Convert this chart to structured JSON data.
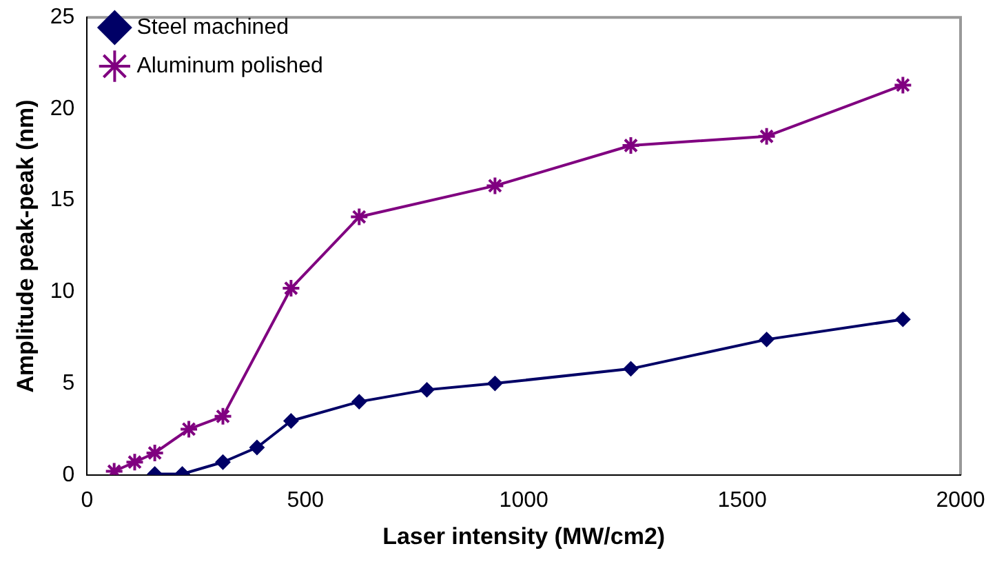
{
  "chart_data": {
    "type": "line",
    "xlabel": "Laser intensity (MW/cm2)",
    "ylabel": "Amplitude peak-peak (nm)",
    "xlim": [
      0,
      2000
    ],
    "xticks": [
      0,
      500,
      1000,
      1500,
      2000
    ],
    "ylim": [
      0,
      25
    ],
    "yticks": [
      0,
      5,
      10,
      15,
      20,
      25
    ],
    "grid": false,
    "legend": "top left",
    "line_style": "solid",
    "series": [
      {
        "name": "Steel machined",
        "color": "#000066",
        "marker": "diamond",
        "x": [
          155,
          218,
          311,
          389,
          467,
          623,
          778,
          934,
          1245,
          1556,
          1868
        ],
        "values": [
          0.05,
          0.05,
          0.7,
          1.5,
          2.95,
          4.0,
          4.65,
          5.0,
          5.8,
          7.4,
          8.5
        ]
      },
      {
        "name": "Aluminum polished",
        "color": "#800080",
        "marker": "cross",
        "x": [
          62,
          109,
          155,
          233,
          311,
          467,
          623,
          934,
          1245,
          1556,
          1868
        ],
        "values": [
          0.2,
          0.7,
          1.2,
          2.5,
          3.2,
          10.2,
          14.1,
          15.8,
          18.0,
          18.5,
          21.3
        ]
      }
    ]
  }
}
